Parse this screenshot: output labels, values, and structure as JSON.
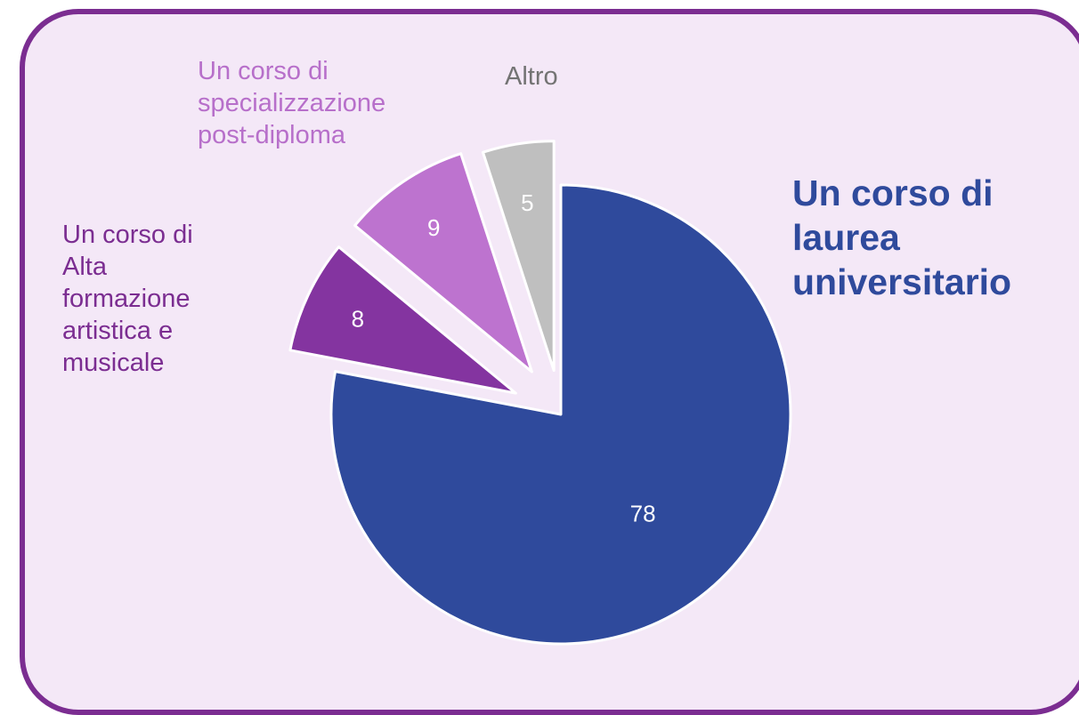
{
  "colors": {
    "panel_background": "#f4e8f7",
    "panel_border": "#7b2d91"
  },
  "chart_data": {
    "type": "pie",
    "exploded": true,
    "slices": [
      {
        "label": "Un corso di laurea universitario",
        "value": 78,
        "color": "#2f4a9c",
        "label_color": "#2f4a9c"
      },
      {
        "label": "Un corso di Alta formazione artistica e musicale",
        "value": 8,
        "color": "#8434a0",
        "label_color": "#7b2d91"
      },
      {
        "label": "Un corso di specializzazione post-diploma",
        "value": 9,
        "color": "#bd73cf",
        "label_color": "#b76fca"
      },
      {
        "label": "Altro",
        "value": 5,
        "color": "#bfbfbf",
        "label_color": "#737373"
      }
    ]
  }
}
